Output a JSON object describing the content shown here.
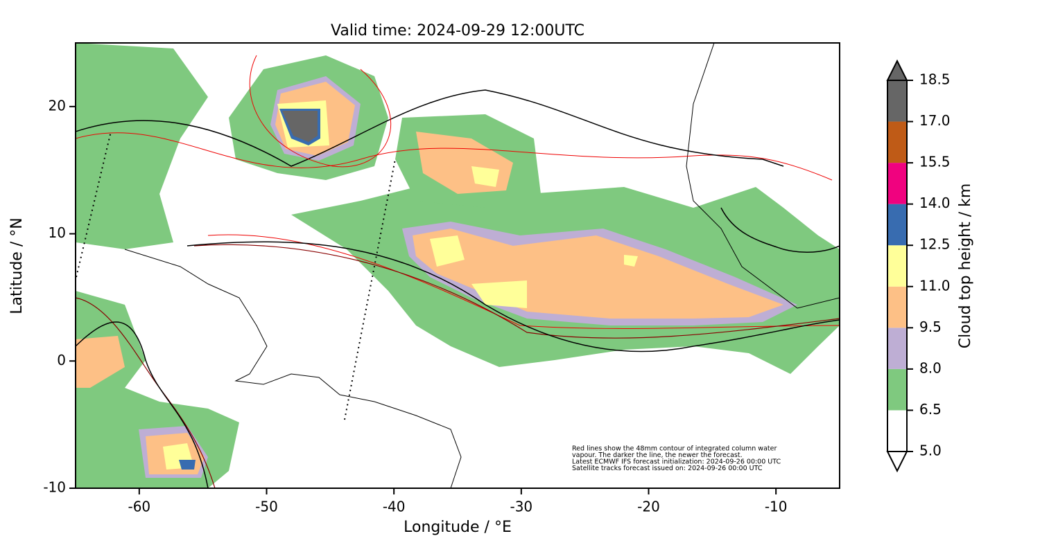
{
  "chart_data": {
    "type": "map",
    "title": "Valid time: 2024-09-29 12:00UTC",
    "xlabel": "Longitude / °E",
    "ylabel": "Latitude / °N",
    "xlim": [
      -65,
      -5
    ],
    "ylim": [
      -10,
      25
    ],
    "xticks": [
      -60,
      -50,
      -40,
      -30,
      -20,
      -10
    ],
    "yticks": [
      -10,
      0,
      10,
      20
    ],
    "colorbar": {
      "label": "Cloud top height / km",
      "levels": [
        {
          "value": 5,
          "label": "5.0"
        },
        {
          "value": 6.5,
          "label": "6.5"
        },
        {
          "value": 8,
          "label": "8.0"
        },
        {
          "value": 9.5,
          "label": "9.5"
        },
        {
          "value": 11,
          "label": "11.0"
        },
        {
          "value": 12.5,
          "label": "12.5"
        },
        {
          "value": 14,
          "label": "14.0"
        },
        {
          "value": 15.5,
          "label": "15.5"
        },
        {
          "value": 17,
          "label": "17.0"
        },
        {
          "value": 18.5,
          "label": "18.5"
        }
      ],
      "colors": [
        "#ffffff",
        "#7fc97f",
        "#beaed4",
        "#fdc086",
        "#ffff99",
        "#386cb0",
        "#f0027f",
        "#bf5b17",
        "#666666"
      ]
    },
    "notes": [
      "Red lines show the 48mm contour of integrated column water",
      "vapour. The darker the line, the newer the forecast.",
      "Latest ECMWF IFS forecast initialization: 2024-09-26 00:00 UTC",
      "Satellite tracks forecast issued on: 2024-09-26 00:00 UTC"
    ]
  }
}
